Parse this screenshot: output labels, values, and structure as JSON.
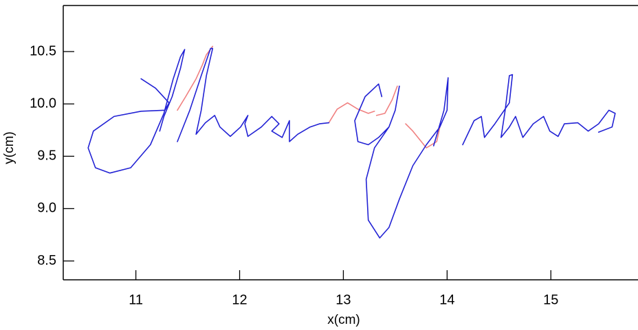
{
  "chart_data": {
    "type": "line",
    "x_label": "x(cm)",
    "y_label": "y(cm)",
    "xlim": [
      10.3,
      15.84
    ],
    "ylim": [
      8.32,
      10.94
    ],
    "xticks": [
      11,
      12,
      13,
      14,
      15
    ],
    "yticks": [
      8.5,
      {
        "value": 9,
        "label": "9.0"
      },
      9.5,
      {
        "value": 10,
        "label": "10.0"
      },
      10.5
    ],
    "series": [
      {
        "color": "#f08080",
        "x": [
          11.4,
          11.48,
          11.58,
          11.64,
          11.68,
          11.74,
          null,
          12.86,
          12.94,
          13.04,
          13.14,
          13.24,
          13.3,
          null,
          13.52,
          13.47,
          13.4,
          13.32,
          null,
          13.6,
          13.67,
          13.8,
          13.9,
          13.93
        ],
        "values": [
          9.94,
          10.07,
          10.24,
          10.37,
          10.47,
          10.55,
          null,
          9.82,
          9.95,
          10.01,
          9.95,
          9.91,
          9.93,
          null,
          10.17,
          10.04,
          9.91,
          9.89,
          null,
          9.81,
          9.74,
          9.58,
          9.64,
          9.78
        ]
      },
      {
        "color": "#2222d4",
        "x": [
          11.05,
          11.19,
          11.32,
          11.28,
          11.05,
          10.79,
          10.59,
          10.54,
          10.61,
          10.75,
          10.95,
          11.14,
          11.27,
          11.36,
          11.43,
          11.47,
          11.43,
          11.35,
          11.27,
          11.23,
          null,
          11.4,
          11.52,
          11.63,
          11.72,
          11.74,
          11.68,
          11.63,
          11.58,
          11.67,
          11.76,
          11.81,
          11.91,
          12.01,
          12.08,
          12.05,
          12.08,
          12.21,
          12.31,
          12.38,
          12.31,
          12.41,
          12.48,
          12.48,
          12.56,
          12.68,
          12.77,
          12.86,
          null,
          13.37,
          13.34,
          13.21,
          13.11,
          13.14,
          13.24,
          13.34,
          13.44,
          null,
          13.54,
          13.5,
          13.44,
          13.3,
          13.22,
          13.24,
          13.35,
          13.44,
          13.54,
          13.67,
          13.8,
          13.93,
          14.0,
          14.01,
          13.97,
          13.87,
          null,
          14.15,
          14.26,
          14.33,
          14.36,
          14.46,
          14.6,
          14.63,
          14.6,
          14.56,
          14.52,
          14.6,
          14.66,
          14.73,
          14.83,
          14.93,
          14.99,
          15.07,
          15.13,
          15.26,
          15.36,
          15.46,
          15.56,
          15.62,
          15.59,
          15.46
        ],
        "values": [
          10.24,
          10.15,
          10.01,
          9.94,
          9.93,
          9.88,
          9.74,
          9.58,
          9.39,
          9.34,
          9.39,
          9.61,
          9.91,
          10.24,
          10.45,
          10.52,
          10.34,
          10.07,
          9.88,
          9.74,
          null,
          9.64,
          9.94,
          10.27,
          10.53,
          10.53,
          10.27,
          9.94,
          9.71,
          9.82,
          9.89,
          9.78,
          9.69,
          9.78,
          9.89,
          9.81,
          9.69,
          9.78,
          9.88,
          9.81,
          9.74,
          9.68,
          9.84,
          9.64,
          9.71,
          9.78,
          9.81,
          9.82,
          null,
          10.07,
          10.19,
          10.07,
          9.84,
          9.64,
          9.61,
          9.68,
          9.78,
          null,
          10.17,
          9.94,
          9.78,
          9.58,
          9.28,
          8.89,
          8.72,
          8.82,
          9.09,
          9.41,
          9.61,
          9.78,
          9.94,
          10.25,
          9.94,
          9.6,
          null,
          9.61,
          9.84,
          9.88,
          9.68,
          9.81,
          10.01,
          10.28,
          10.27,
          9.94,
          9.68,
          9.78,
          9.88,
          9.68,
          9.81,
          9.88,
          9.74,
          9.69,
          9.81,
          9.82,
          9.74,
          9.81,
          9.94,
          9.91,
          9.78,
          9.73
        ]
      }
    ]
  }
}
